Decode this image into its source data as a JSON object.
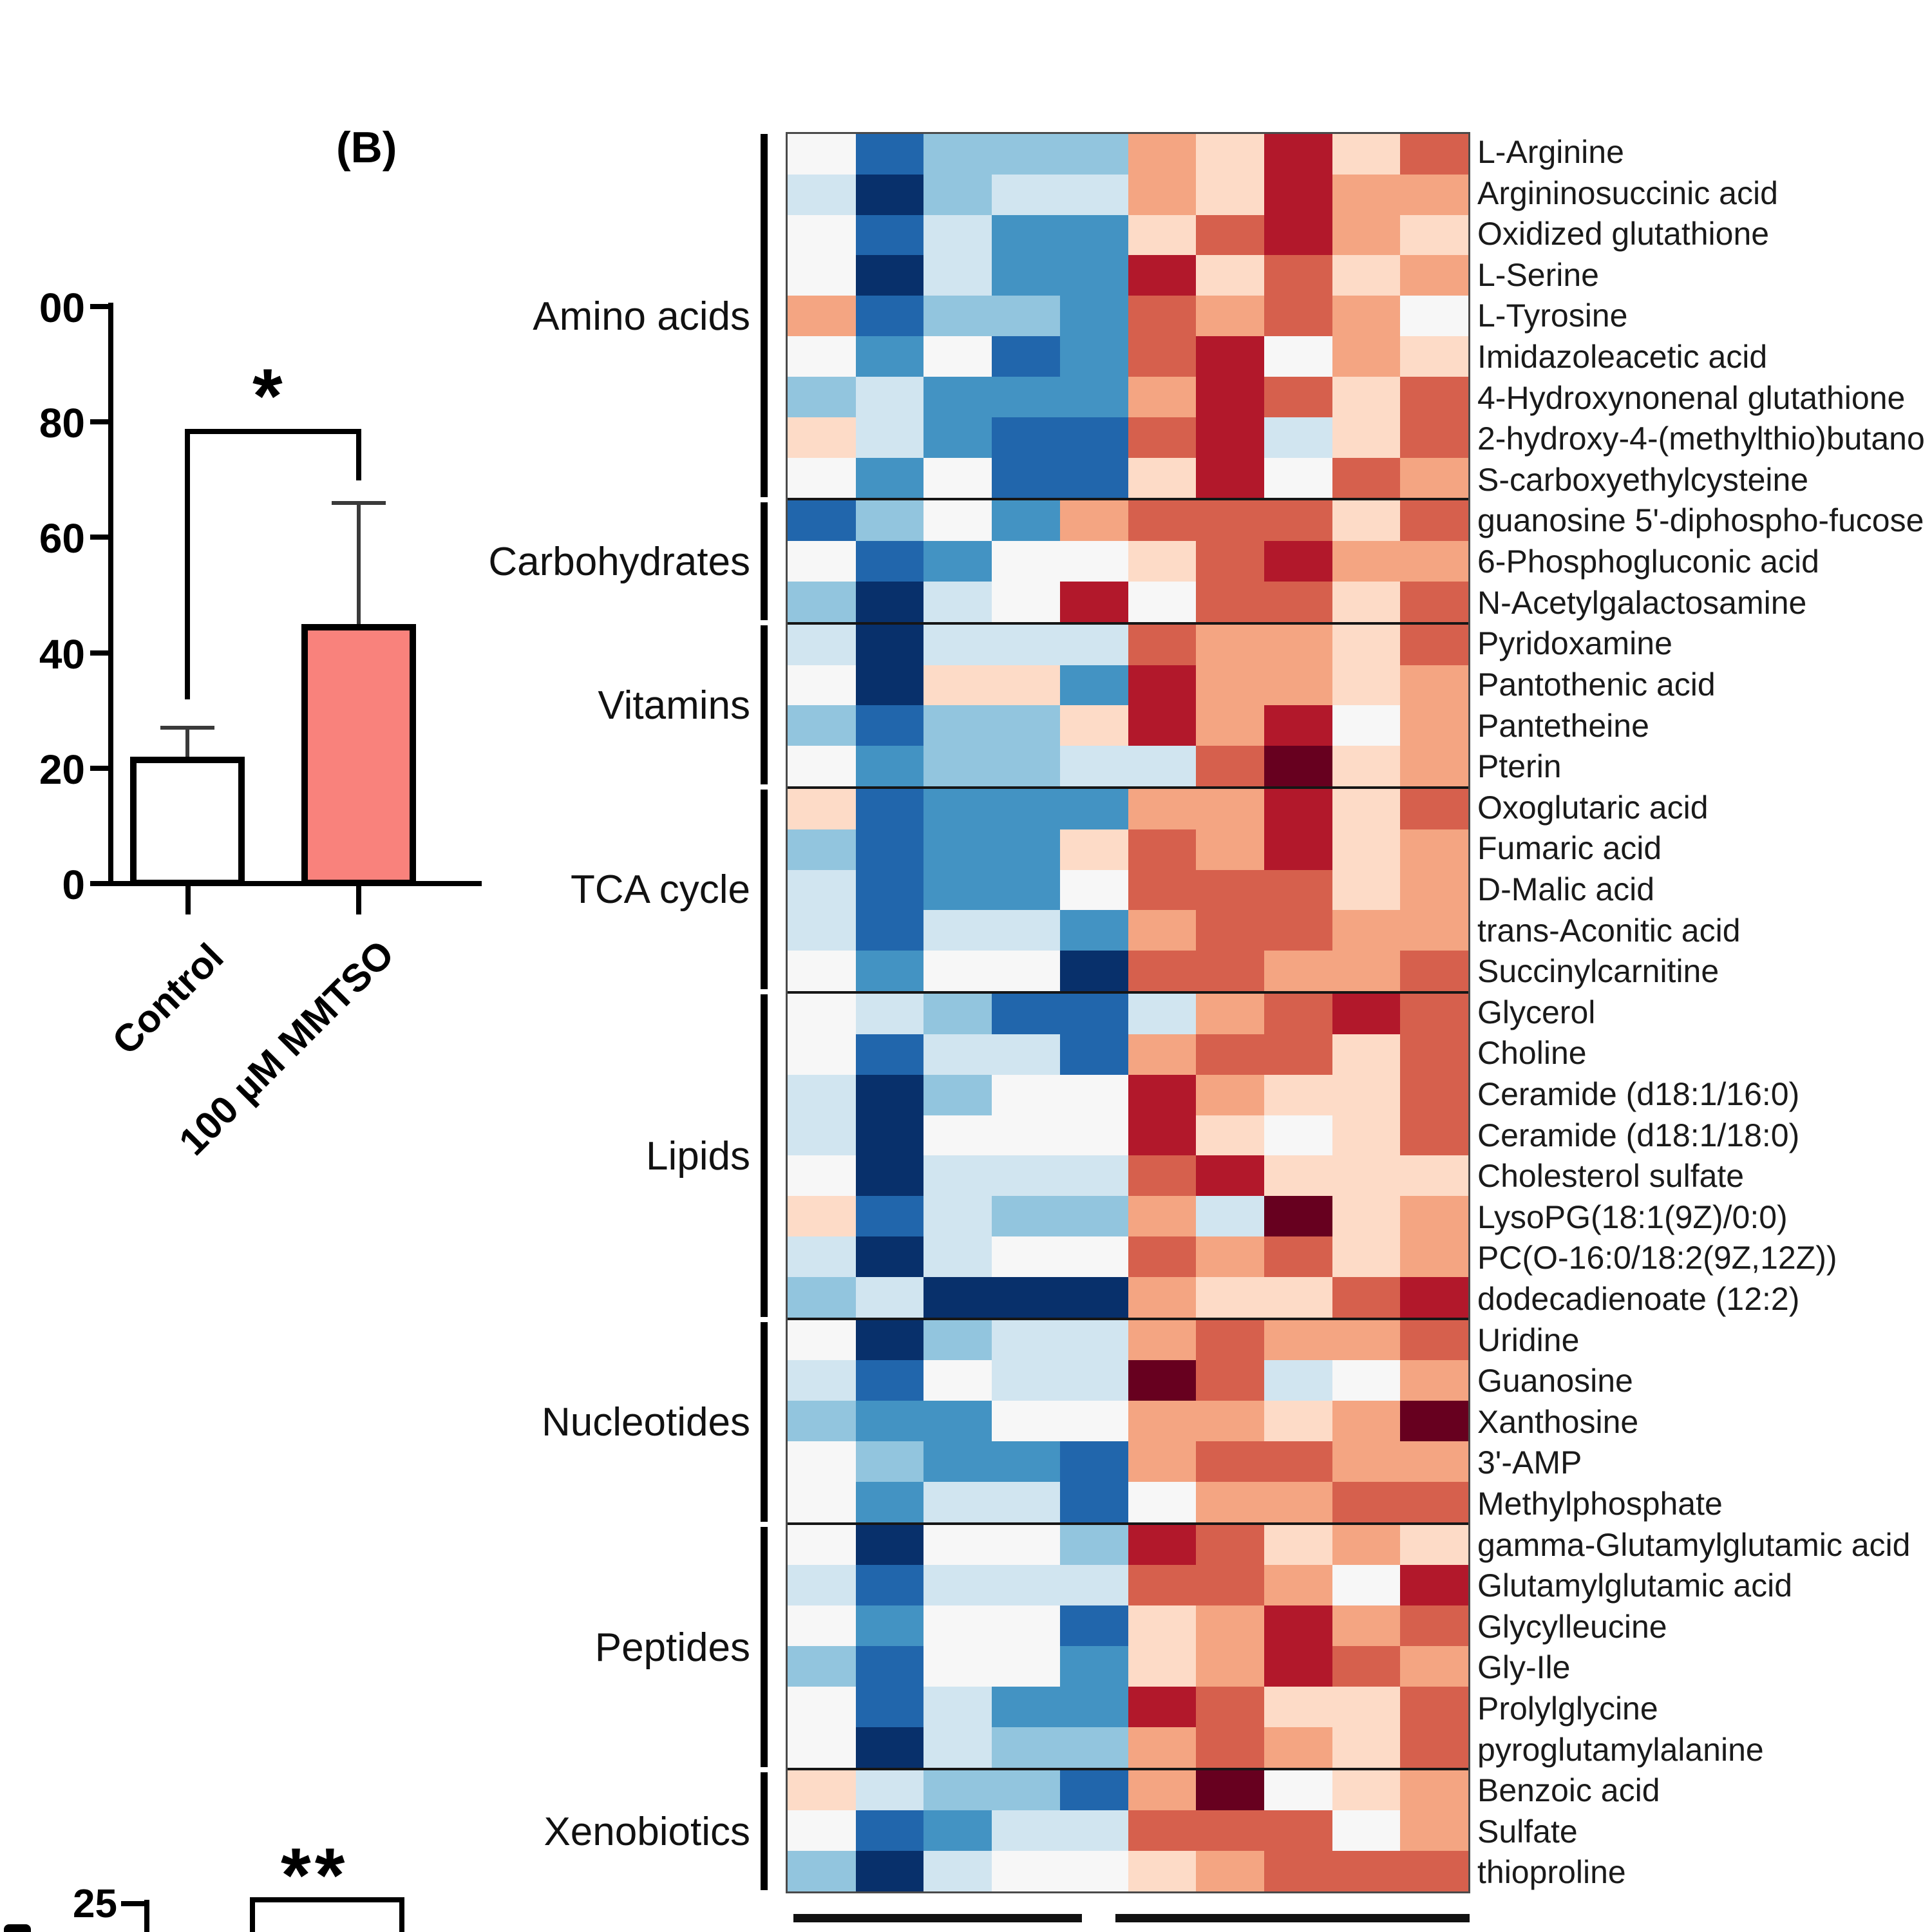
{
  "panel_label": "(B)",
  "chart_data": [
    {
      "type": "bar",
      "title": "",
      "xlabel": "",
      "ylabel": "",
      "categories": [
        "Control",
        "100 µM MMTSO"
      ],
      "values": [
        22,
        45
      ],
      "error_top": [
        27,
        66
      ],
      "bar_colors": [
        "#FFFFFF",
        "#F9827C"
      ],
      "bar_border_color": "#000000",
      "y_tick_labels": [
        "00",
        "80",
        "60",
        "40",
        "20",
        "0"
      ],
      "y_tick_values": [
        100,
        80,
        60,
        40,
        20,
        0
      ],
      "ylim": [
        0,
        100
      ],
      "significance": "*",
      "grid": "off",
      "legend": "none"
    },
    {
      "type": "heatmap",
      "n_cols": 10,
      "col_split": 5,
      "palette": {
        "-4": "#08306B",
        "-3": "#2166AC",
        "-2": "#4393C3",
        "-1.5": "#92C5DE",
        "-1": "#D1E5F0",
        "0": "#F7F7F7",
        "1": "#FDDBC7",
        "1.5": "#F4A582",
        "2": "#D6604D",
        "3": "#B2182B",
        "4": "#67001F"
      },
      "groups": [
        {
          "name": "Amino acids",
          "start": 0,
          "end": 8
        },
        {
          "name": "Carbohydrates",
          "start": 9,
          "end": 11
        },
        {
          "name": "Vitamins",
          "start": 12,
          "end": 15
        },
        {
          "name": "TCA cycle",
          "start": 16,
          "end": 20
        },
        {
          "name": "Lipids",
          "start": 21,
          "end": 28
        },
        {
          "name": "Nucleotides",
          "start": 29,
          "end": 33
        },
        {
          "name": "Peptides",
          "start": 34,
          "end": 39
        },
        {
          "name": "Xenobiotics",
          "start": 40,
          "end": 42
        }
      ],
      "rows": [
        {
          "label": "L-Arginine",
          "values": [
            0,
            -3,
            -1.5,
            -1.5,
            -1.5,
            1.5,
            1,
            3,
            1,
            2
          ]
        },
        {
          "label": "Argininosuccinic acid",
          "values": [
            -1,
            -4,
            -1.5,
            -1,
            -1,
            1.5,
            1,
            3,
            1.5,
            1.5
          ]
        },
        {
          "label": "Oxidized glutathione",
          "values": [
            0,
            -3,
            -1,
            -2,
            -2,
            1,
            2,
            3,
            1.5,
            1
          ]
        },
        {
          "label": "L-Serine",
          "values": [
            0,
            -4,
            -1,
            -2,
            -2,
            3,
            1,
            2,
            1,
            1.5
          ]
        },
        {
          "label": "L-Tyrosine",
          "values": [
            1.5,
            -3,
            -1.5,
            -1.5,
            -2,
            2,
            1.5,
            2,
            1.5,
            0
          ]
        },
        {
          "label": "Imidazoleacetic acid",
          "values": [
            0,
            -2,
            0,
            -3,
            -2,
            2,
            3,
            0,
            1.5,
            1
          ]
        },
        {
          "label": "4-Hydroxynonenal glutathione",
          "values": [
            -1.5,
            -1,
            -2,
            -2,
            -2,
            1.5,
            3,
            2,
            1,
            2
          ]
        },
        {
          "label": "2-hydroxy-4-(methylthio)butano",
          "values": [
            1,
            -1,
            -2,
            -3,
            -3,
            2,
            3,
            -1,
            1,
            2
          ]
        },
        {
          "label": "S-carboxyethylcysteine",
          "values": [
            0,
            -2,
            0,
            -3,
            -3,
            1,
            3,
            0,
            2,
            1.5
          ]
        },
        {
          "label": "guanosine 5'-diphospho-fucose",
          "values": [
            -3,
            -1.5,
            0,
            -2,
            1.5,
            2,
            2,
            2,
            1,
            2
          ]
        },
        {
          "label": "6-Phosphogluconic acid",
          "values": [
            0,
            -3,
            -2,
            0,
            0,
            1,
            2,
            3,
            1.5,
            1.5
          ]
        },
        {
          "label": "N-Acetylgalactosamine",
          "values": [
            -1.5,
            -4,
            -1,
            0,
            3,
            0,
            2,
            2,
            1,
            2
          ]
        },
        {
          "label": "Pyridoxamine",
          "values": [
            -1,
            -4,
            -1,
            -1,
            -1,
            2,
            1.5,
            1.5,
            1,
            2
          ]
        },
        {
          "label": "Pantothenic acid",
          "values": [
            0,
            -4,
            1,
            1,
            -2,
            3,
            1.5,
            1.5,
            1,
            1.5
          ]
        },
        {
          "label": "Pantetheine",
          "values": [
            -1.5,
            -3,
            -1.5,
            -1.5,
            1,
            3,
            1.5,
            3,
            0,
            1.5
          ]
        },
        {
          "label": "Pterin",
          "values": [
            0,
            -2,
            -1.5,
            -1.5,
            -1,
            -1,
            2,
            4,
            1,
            1.5
          ]
        },
        {
          "label": "Oxoglutaric acid",
          "values": [
            1,
            -3,
            -2,
            -2,
            -2,
            1.5,
            1.5,
            3,
            1,
            2
          ]
        },
        {
          "label": "Fumaric acid",
          "values": [
            -1.5,
            -3,
            -2,
            -2,
            1,
            2,
            1.5,
            3,
            1,
            1.5
          ]
        },
        {
          "label": "D-Malic acid",
          "values": [
            -1,
            -3,
            -2,
            -2,
            0,
            2,
            2,
            2,
            1,
            1.5
          ]
        },
        {
          "label": "trans-Aconitic acid",
          "values": [
            -1,
            -3,
            -1,
            -1,
            -2,
            1.5,
            2,
            2,
            1.5,
            1.5
          ]
        },
        {
          "label": "Succinylcarnitine",
          "values": [
            0,
            -2,
            0,
            0,
            -4,
            2,
            2,
            1.5,
            1.5,
            2
          ]
        },
        {
          "label": "Glycerol",
          "values": [
            0,
            -1,
            -1.5,
            -3,
            -3,
            -1,
            1.5,
            2,
            3,
            2
          ]
        },
        {
          "label": "Choline",
          "values": [
            0,
            -3,
            -1,
            -1,
            -3,
            1.5,
            2,
            2,
            1,
            2
          ]
        },
        {
          "label": "Ceramide (d18:1/16:0)",
          "values": [
            -1,
            -4,
            -1.5,
            0,
            0,
            3,
            1.5,
            1,
            1,
            2
          ]
        },
        {
          "label": "Ceramide (d18:1/18:0)",
          "values": [
            -1,
            -4,
            0,
            0,
            0,
            3,
            1,
            0,
            1,
            2
          ]
        },
        {
          "label": "Cholesterol sulfate",
          "values": [
            0,
            -4,
            -1,
            -1,
            -1,
            2,
            3,
            1,
            1,
            1
          ]
        },
        {
          "label": "LysoPG(18:1(9Z)/0:0)",
          "values": [
            1,
            -3,
            -1,
            -1.5,
            -1.5,
            1.5,
            -1,
            4,
            1,
            1.5
          ]
        },
        {
          "label": "PC(O-16:0/18:2(9Z,12Z))",
          "values": [
            -1,
            -4,
            -1,
            0,
            0,
            2,
            1.5,
            2,
            1,
            1.5
          ]
        },
        {
          "label": "dodecadienoate (12:2)",
          "values": [
            -1.5,
            -1,
            -4,
            -4,
            -4,
            1.5,
            1,
            1,
            2,
            3
          ]
        },
        {
          "label": "Uridine",
          "values": [
            0,
            -4,
            -1.5,
            -1,
            -1,
            1.5,
            2,
            1.5,
            1.5,
            2
          ]
        },
        {
          "label": "Guanosine",
          "values": [
            -1,
            -3,
            0,
            -1,
            -1,
            4,
            2,
            -1,
            0,
            1.5
          ]
        },
        {
          "label": "Xanthosine",
          "values": [
            -1.5,
            -2,
            -2,
            0,
            0,
            1.5,
            1.5,
            1,
            1.5,
            4
          ]
        },
        {
          "label": "3'-AMP",
          "values": [
            0,
            -1.5,
            -2,
            -2,
            -3,
            1.5,
            2,
            2,
            1.5,
            1.5
          ]
        },
        {
          "label": "Methylphosphate",
          "values": [
            0,
            -2,
            -1,
            -1,
            -3,
            0,
            1.5,
            1.5,
            2,
            2
          ]
        },
        {
          "label": "gamma-Glutamylglutamic acid",
          "values": [
            0,
            -4,
            0,
            0,
            -1.5,
            3,
            2,
            1,
            1.5,
            1
          ]
        },
        {
          "label": "Glutamylglutamic acid",
          "values": [
            -1,
            -3,
            -1,
            -1,
            -1,
            2,
            2,
            1.5,
            0,
            3
          ]
        },
        {
          "label": "Glycylleucine",
          "values": [
            0,
            -2,
            0,
            0,
            -3,
            1,
            1.5,
            3,
            1.5,
            2
          ]
        },
        {
          "label": "Gly-Ile",
          "values": [
            -1.5,
            -3,
            0,
            0,
            -2,
            1,
            1.5,
            3,
            2,
            1.5
          ]
        },
        {
          "label": "Prolylglycine",
          "values": [
            0,
            -3,
            -1,
            -2,
            -2,
            3,
            2,
            1,
            1,
            2
          ]
        },
        {
          "label": "pyroglutamylalanine",
          "values": [
            0,
            -4,
            -1,
            -1.5,
            -1.5,
            1.5,
            2,
            1.5,
            1,
            2
          ]
        },
        {
          "label": "Benzoic acid",
          "values": [
            1,
            -1,
            -1.5,
            -1.5,
            -3,
            1.5,
            4,
            0,
            1,
            1.5
          ]
        },
        {
          "label": "Sulfate",
          "values": [
            0,
            -3,
            -2,
            -1,
            -1,
            2,
            2,
            2,
            0,
            1.5
          ]
        },
        {
          "label": "thioproline",
          "values": [
            -1.5,
            -4,
            -1,
            0,
            0,
            1,
            1.5,
            2,
            2,
            2
          ]
        }
      ]
    },
    {
      "type": "bar",
      "note": "partially visible chart at bottom-left",
      "y_tick_labels": [
        "25"
      ],
      "significance": "**"
    }
  ]
}
